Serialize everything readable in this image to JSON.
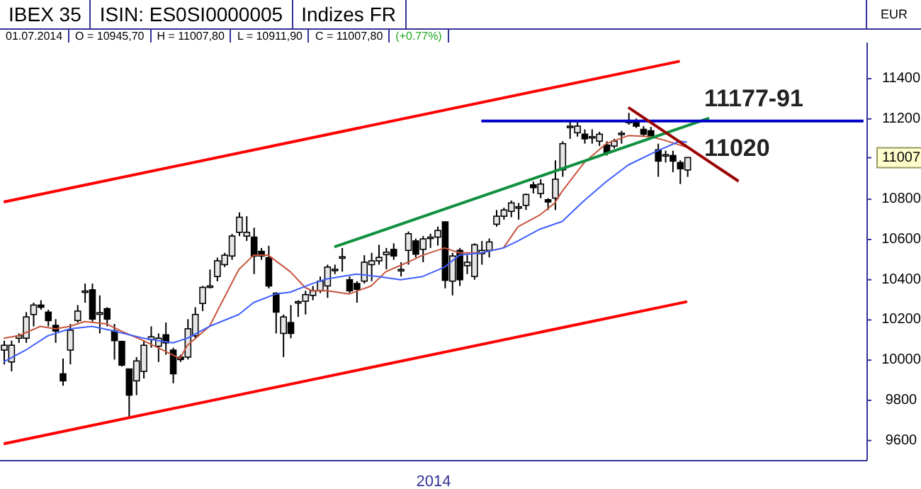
{
  "chart_data": {
    "type": "candlestick",
    "title": "IBEX 35",
    "subtitle": "ISIN: ES0SI0000005",
    "ylabel": "EUR",
    "xlabel": "2014",
    "annotations": [
      "Indizes FR",
      "01.07.2014",
      "O = 10945,70",
      "H = 11007,80",
      "L = 10911,90",
      "C = 11007,80",
      "(+0.77%)",
      "11177-91",
      "11020"
    ],
    "color": "#000000",
    "categories": [
      null,
      null,
      null,
      null,
      null,
      null,
      null,
      null,
      null,
      null,
      null,
      null,
      null,
      null,
      null,
      null,
      null,
      null,
      null,
      null,
      null,
      null,
      null,
      null,
      null,
      null,
      null,
      null,
      null,
      null,
      null,
      null,
      null,
      null,
      null,
      null,
      null,
      null,
      null,
      null,
      null,
      null,
      null,
      null,
      null,
      null,
      null,
      null,
      null,
      null,
      null,
      null,
      null,
      null,
      null,
      null,
      null,
      null,
      null,
      null,
      null,
      null,
      null,
      null,
      null,
      null,
      null,
      null,
      null,
      null,
      null,
      null,
      null,
      null,
      null,
      null,
      null,
      null,
      null,
      null,
      null,
      null,
      null,
      null,
      null,
      null,
      null,
      null,
      null,
      null,
      null,
      null,
      null,
      null,
      null,
      null,
      null,
      null,
      null,
      null,
      null,
      null,
      null,
      null,
      null,
      null,
      null,
      null,
      null,
      null,
      null,
      null,
      null,
      null,
      null,
      null,
      null,
      null
    ],
    "ohlc": [
      [
        10050,
        10097,
        9979,
        10074
      ],
      [
        9991,
        10097,
        9944,
        10074
      ],
      [
        10109,
        10133,
        10086,
        10121
      ],
      [
        10109,
        10239,
        10086,
        10215
      ],
      [
        10227,
        10286,
        10168,
        10274
      ],
      [
        10274,
        10298,
        10251,
        10263
      ],
      [
        10239,
        10251,
        10168,
        10197
      ],
      [
        10173,
        10204,
        10086,
        10145
      ],
      [
        9932,
        10008,
        9873,
        9897
      ],
      [
        10050,
        10180,
        9979,
        10149
      ],
      [
        10197,
        10274,
        10187,
        10244
      ],
      [
        10338,
        10381,
        10286,
        10344
      ],
      [
        10350,
        10381,
        10192,
        10204
      ],
      [
        10228,
        10322,
        10133,
        10236
      ],
      [
        10256,
        10263,
        10168,
        10204
      ],
      [
        10145,
        10180,
        10003,
        10097
      ],
      [
        10093,
        10097,
        9968,
        9975
      ],
      [
        9956,
        9956,
        9720,
        9826
      ],
      [
        9897,
        10015,
        9826,
        9996
      ],
      [
        9944,
        10097,
        9909,
        10074
      ],
      [
        10103,
        10168,
        10062,
        10116
      ],
      [
        10069,
        10133,
        9991,
        10109
      ],
      [
        10126,
        10187,
        10027,
        10086
      ],
      [
        10050,
        10062,
        9885,
        9932
      ],
      [
        10015,
        10027,
        9991,
        10003
      ],
      [
        10015,
        10204,
        10003,
        10156
      ],
      [
        10121,
        10263,
        10109,
        10227
      ],
      [
        10282,
        10369,
        10244,
        10362
      ],
      [
        10365,
        10451,
        10357,
        10369
      ],
      [
        10416,
        10510,
        10392,
        10494
      ],
      [
        10475,
        10534,
        10463,
        10522
      ],
      [
        10518,
        10628,
        10499,
        10617
      ],
      [
        10636,
        10735,
        10617,
        10711
      ],
      [
        10617,
        10716,
        10593,
        10636
      ],
      [
        10612,
        10659,
        10428,
        10518
      ],
      [
        10541,
        10558,
        10499,
        10518
      ],
      [
        10510,
        10569,
        10357,
        10369
      ],
      [
        10333,
        10338,
        10133,
        10239
      ],
      [
        10133,
        10227,
        10015,
        10215
      ],
      [
        10187,
        10274,
        10109,
        10133
      ],
      [
        10286,
        10298,
        10215,
        10291
      ],
      [
        10293,
        10345,
        10227,
        10326
      ],
      [
        10322,
        10369,
        10298,
        10345
      ],
      [
        10345,
        10416,
        10334,
        10393
      ],
      [
        10369,
        10475,
        10310,
        10463
      ],
      [
        10448,
        10475,
        10428,
        10452
      ],
      [
        10508,
        10558,
        10440,
        10514
      ],
      [
        10400,
        10416,
        10334,
        10345
      ],
      [
        10381,
        10393,
        10286,
        10352
      ],
      [
        10393,
        10522,
        10381,
        10487
      ],
      [
        10475,
        10534,
        10393,
        10494
      ],
      [
        10494,
        10574,
        10475,
        10511
      ],
      [
        10525,
        10558,
        10452,
        10537
      ],
      [
        10551,
        10581,
        10499,
        10518
      ],
      [
        10447,
        10487,
        10416,
        10451
      ],
      [
        10546,
        10640,
        10475,
        10629
      ],
      [
        10593,
        10605,
        10511,
        10527
      ],
      [
        10551,
        10617,
        10487,
        10603
      ],
      [
        10610,
        10629,
        10558,
        10612
      ],
      [
        10612,
        10664,
        10570,
        10645
      ],
      [
        10688,
        10688,
        10357,
        10397
      ],
      [
        10393,
        10534,
        10322,
        10518
      ],
      [
        10546,
        10558,
        10369,
        10400
      ],
      [
        10470,
        10522,
        10428,
        10487
      ],
      [
        10416,
        10581,
        10400,
        10574
      ],
      [
        10530,
        10593,
        10475,
        10546
      ],
      [
        10546,
        10605,
        10511,
        10588
      ],
      [
        10676,
        10747,
        10664,
        10716
      ],
      [
        10716,
        10758,
        10699,
        10747
      ],
      [
        10740,
        10794,
        10711,
        10782
      ],
      [
        10760,
        10782,
        10699,
        10763
      ],
      [
        10770,
        10829,
        10747,
        10824
      ],
      [
        10872,
        10888,
        10829,
        10858
      ],
      [
        10829,
        10900,
        10806,
        10876
      ],
      [
        10798,
        10806,
        10747,
        10787
      ],
      [
        10806,
        10994,
        10747,
        10900
      ],
      [
        10947,
        11089,
        10912,
        11077
      ],
      [
        11162,
        11195,
        11101,
        11164
      ],
      [
        11131,
        11183,
        11112,
        11164
      ],
      [
        11124,
        11148,
        11077,
        11101
      ],
      [
        11110,
        11148,
        11077,
        11112
      ],
      [
        11089,
        11136,
        11065,
        11124
      ],
      [
        11070,
        11089,
        11018,
        11030
      ],
      [
        11065,
        11101,
        11053,
        11089
      ],
      [
        11127,
        11141,
        11077,
        11129
      ],
      [
        11184,
        11230,
        11171,
        11188
      ],
      [
        11188,
        11202,
        11155,
        11164
      ],
      [
        11148,
        11164,
        11112,
        11124
      ],
      [
        11141,
        11160,
        11101,
        11112
      ],
      [
        11046,
        11077,
        10912,
        10990
      ],
      [
        11018,
        11042,
        10983,
        11022
      ],
      [
        11018,
        11042,
        10935,
        10990
      ],
      [
        10983,
        10994,
        10876,
        10952
      ],
      [
        10945.7,
        11007.8,
        10911.9,
        11007.8
      ],
      null,
      null,
      null,
      null,
      null,
      null,
      null,
      null,
      null,
      null,
      null,
      null,
      null,
      null,
      null,
      null,
      null,
      null,
      null,
      null,
      null,
      null,
      null,
      null
    ],
    "series": [
      {
        "type": "line",
        "color": "#c8553d",
        "values": [
          10109,
          null,
          10121,
          null,
          null,
          10168,
          null,
          10156,
          null,
          10168,
          null,
          10192,
          null,
          null,
          10180,
          null,
          10145,
          null,
          null,
          10097,
          null,
          10062,
          null,
          null,
          10008,
          10074,
          null,
          null,
          10168,
          null,
          10310,
          null,
          10451,
          null,
          10522,
          null,
          10522,
          null,
          null,
          10440,
          null,
          10362,
          10345,
          null,
          10345,
          null,
          null,
          10329,
          null,
          null,
          10369,
          null,
          10440,
          null,
          null,
          10487,
          null,
          10522,
          null,
          null,
          10558,
          null,
          10534,
          null,
          null,
          10534,
          null,
          null,
          10558,
          null,
          10664,
          null,
          null,
          10723,
          null,
          10782,
          10840,
          null,
          null,
          10983,
          null,
          null,
          11077,
          null,
          null,
          11117,
          null,
          null,
          11112,
          null,
          11093,
          null,
          11070,
          11060,
          null,
          null,
          null,
          null,
          null,
          null,
          null,
          null,
          null,
          null,
          null,
          null,
          null,
          null,
          null,
          null,
          null,
          null,
          null,
          null,
          null,
          null,
          null,
          null
        ]
      },
      {
        "type": "line",
        "color": "#3f5fff",
        "values": [
          9991,
          null,
          null,
          10050,
          null,
          null,
          10121,
          null,
          null,
          10156,
          null,
          null,
          10168,
          null,
          null,
          10145,
          null,
          null,
          null,
          10109,
          null,
          null,
          null,
          10086,
          null,
          10109,
          null,
          null,
          10168,
          null,
          null,
          null,
          10227,
          null,
          10286,
          null,
          null,
          10329,
          null,
          10338,
          null,
          null,
          10381,
          null,
          10404,
          null,
          null,
          null,
          10428,
          null,
          null,
          10416,
          null,
          null,
          10400,
          null,
          null,
          10416,
          null,
          null,
          10463,
          null,
          10522,
          null,
          null,
          10534,
          null,
          null,
          10558,
          null,
          10593,
          null,
          null,
          10652,
          null,
          null,
          10690,
          null,
          null,
          10794,
          null,
          null,
          10888,
          null,
          null,
          10971,
          null,
          null,
          null,
          11042,
          null,
          null,
          11089,
          11084,
          null,
          null,
          null,
          null,
          null,
          null,
          null,
          null,
          null,
          null,
          null,
          null,
          null,
          null,
          null,
          null,
          null,
          null,
          null,
          null,
          null,
          null,
          null,
          null
        ]
      },
      {
        "type": "line",
        "color": "#ff0000",
        "values": [
          10787,
          null,
          null,
          null,
          null,
          null,
          null,
          null,
          null,
          null,
          null,
          null,
          null,
          null,
          null,
          null,
          null,
          null,
          null,
          null,
          null,
          null,
          null,
          null,
          null,
          null,
          null,
          null,
          null,
          null,
          null,
          null,
          null,
          null,
          null,
          null,
          null,
          null,
          null,
          null,
          null,
          null,
          null,
          null,
          null,
          null,
          null,
          null,
          null,
          null,
          null,
          null,
          null,
          null,
          null,
          null,
          null,
          null,
          null,
          null,
          null,
          null,
          null,
          null,
          null,
          null,
          null,
          null,
          null,
          null,
          null,
          null,
          null,
          null,
          null,
          null,
          null,
          null,
          null,
          null,
          null,
          null,
          null,
          null,
          null,
          null,
          null,
          null,
          null,
          null,
          null,
          null,
          11487,
          null,
          null,
          null,
          null,
          null,
          null,
          null,
          null,
          null,
          null,
          null,
          null,
          null,
          null,
          null,
          null,
          null,
          null,
          null,
          null,
          null,
          null,
          null,
          null,
          null
        ]
      },
      {
        "type": "line",
        "color": "#ff0000",
        "values": [
          9584,
          null,
          null,
          null,
          null,
          null,
          null,
          null,
          null,
          null,
          null,
          null,
          null,
          null,
          null,
          null,
          null,
          null,
          null,
          null,
          null,
          null,
          null,
          null,
          null,
          null,
          null,
          null,
          null,
          null,
          null,
          null,
          null,
          null,
          null,
          null,
          null,
          null,
          null,
          null,
          null,
          null,
          null,
          null,
          null,
          null,
          null,
          null,
          null,
          null,
          null,
          null,
          null,
          null,
          null,
          null,
          null,
          null,
          null,
          null,
          null,
          null,
          null,
          null,
          null,
          null,
          null,
          null,
          null,
          null,
          null,
          null,
          null,
          null,
          null,
          null,
          null,
          null,
          null,
          null,
          null,
          null,
          null,
          null,
          null,
          null,
          null,
          null,
          null,
          null,
          null,
          null,
          null,
          10291,
          null,
          null,
          null,
          null,
          null,
          null,
          null,
          null,
          null,
          null,
          null,
          null,
          null,
          null,
          null,
          null,
          null,
          null,
          null,
          null,
          null,
          null,
          null,
          null
        ]
      },
      {
        "type": "line",
        "color": "#109040",
        "values": [
          null,
          null,
          null,
          null,
          null,
          null,
          null,
          null,
          null,
          null,
          null,
          null,
          null,
          null,
          null,
          null,
          null,
          null,
          null,
          null,
          null,
          null,
          null,
          null,
          null,
          null,
          null,
          null,
          null,
          null,
          null,
          null,
          null,
          null,
          null,
          null,
          null,
          null,
          null,
          null,
          null,
          null,
          null,
          null,
          null,
          10563,
          null,
          null,
          null,
          null,
          null,
          null,
          null,
          null,
          null,
          null,
          null,
          null,
          null,
          null,
          null,
          null,
          null,
          null,
          null,
          null,
          null,
          null,
          null,
          null,
          null,
          null,
          null,
          null,
          null,
          null,
          null,
          null,
          null,
          null,
          null,
          null,
          null,
          null,
          null,
          null,
          null,
          null,
          null,
          null,
          null,
          null,
          null,
          null,
          null,
          null,
          11204,
          null,
          null,
          null,
          null,
          null,
          null,
          null,
          null,
          null,
          null,
          null,
          null,
          null,
          null,
          null,
          null,
          null,
          null,
          null,
          null,
          null
        ]
      },
      {
        "type": "line",
        "color": "#0000cc",
        "values": [
          null,
          null,
          null,
          null,
          null,
          null,
          null,
          null,
          null,
          null,
          null,
          null,
          null,
          null,
          null,
          null,
          null,
          null,
          null,
          null,
          null,
          null,
          null,
          null,
          null,
          null,
          null,
          null,
          null,
          null,
          null,
          null,
          null,
          null,
          null,
          null,
          null,
          null,
          null,
          null,
          null,
          null,
          null,
          null,
          null,
          null,
          null,
          null,
          null,
          null,
          null,
          null,
          null,
          null,
          null,
          null,
          null,
          null,
          null,
          null,
          null,
          null,
          null,
          null,
          null,
          11190,
          null,
          null,
          null,
          null,
          null,
          null,
          null,
          null,
          null,
          null,
          null,
          null,
          null,
          null,
          null,
          null,
          null,
          null,
          null,
          null,
          null,
          null,
          null,
          null,
          null,
          null,
          null,
          null,
          null,
          null,
          null,
          null,
          null,
          null,
          null,
          null,
          null,
          null,
          null,
          null,
          null,
          null,
          null,
          null,
          null,
          null,
          null,
          null,
          null,
          null,
          null,
          11190
        ]
      },
      {
        "type": "line",
        "color": "#990000",
        "values": [
          null,
          null,
          null,
          null,
          null,
          null,
          null,
          null,
          null,
          null,
          null,
          null,
          null,
          null,
          null,
          null,
          null,
          null,
          null,
          null,
          null,
          null,
          null,
          null,
          null,
          null,
          null,
          null,
          null,
          null,
          null,
          null,
          null,
          null,
          null,
          null,
          null,
          null,
          null,
          null,
          null,
          null,
          null,
          null,
          null,
          null,
          null,
          null,
          null,
          null,
          null,
          null,
          null,
          null,
          null,
          null,
          null,
          null,
          null,
          null,
          null,
          null,
          null,
          null,
          null,
          null,
          null,
          null,
          null,
          null,
          null,
          null,
          null,
          null,
          null,
          null,
          null,
          null,
          null,
          null,
          null,
          null,
          null,
          null,
          null,
          11257,
          null,
          null,
          null,
          null,
          null,
          null,
          null,
          null,
          null,
          null,
          null,
          null,
          null,
          null,
          10890,
          null,
          null,
          null,
          null,
          null,
          null,
          null,
          null,
          null,
          null,
          null,
          null,
          null,
          null,
          null,
          null,
          null
        ]
      }
    ],
    "ylim": [
      9500,
      11580
    ],
    "yticks": [
      9600,
      9800,
      10000,
      10200,
      10400,
      10600,
      10800,
      {
        "value": 11007,
        "label": "11007"
      },
      11200,
      11400
    ]
  }
}
